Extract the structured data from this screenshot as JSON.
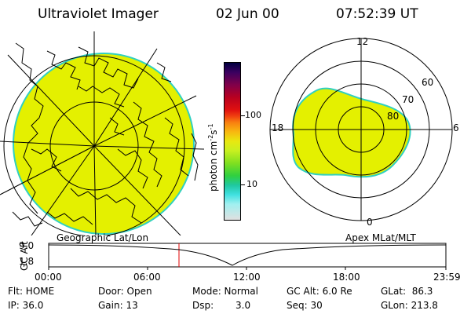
{
  "header": {
    "title": "Ultraviolet Imager",
    "date": "02 Jun 00",
    "time": "07:52:39 UT"
  },
  "colorbar": {
    "label": "photon cm",
    "label_exp": "-2",
    "label_unit": "s",
    "label_unit_exp": "-1",
    "ticks": [
      "100",
      "10"
    ],
    "colors": [
      "#000040",
      "#3a0060",
      "#80004a",
      "#b80020",
      "#e01010",
      "#f04010",
      "#f88010",
      "#f8b810",
      "#e8e810",
      "#c8f020",
      "#80e020",
      "#30d040",
      "#20c8a0",
      "#40e0e0",
      "#a0f0f0",
      "#e0e0e0"
    ]
  },
  "left_panel": {
    "caption": "Geographic Lat/Lon",
    "fill_color": "#e4f000"
  },
  "right_panel": {
    "caption": "Apex MLat/MLT",
    "mlt_labels": {
      "top": "12",
      "left": "18",
      "right": "6",
      "bottom": "0"
    },
    "lat_labels": [
      "60",
      "70",
      "80"
    ],
    "fill_color": "#e4f000"
  },
  "altitude_plot": {
    "ylabel": "GC Alt",
    "yticks": [
      "9.0",
      "1.8"
    ],
    "xticks": [
      "00:00",
      "06:00",
      "12:00",
      "18:00",
      "23:59"
    ],
    "marker_color": "#e00000"
  },
  "info": {
    "flt": "Flt: HOME",
    "ip": "IP: 36.0",
    "door": "Door: Open",
    "gain": "Gain: 13",
    "mode": "Mode: Normal",
    "dsp_label": "Dsp:",
    "dsp_value": "3.0",
    "gc_alt": "GC Alt: 6.0 Re",
    "seq": "Seq: 30",
    "glat": "GLat:  86.3",
    "glon": "GLon: 213.8"
  }
}
